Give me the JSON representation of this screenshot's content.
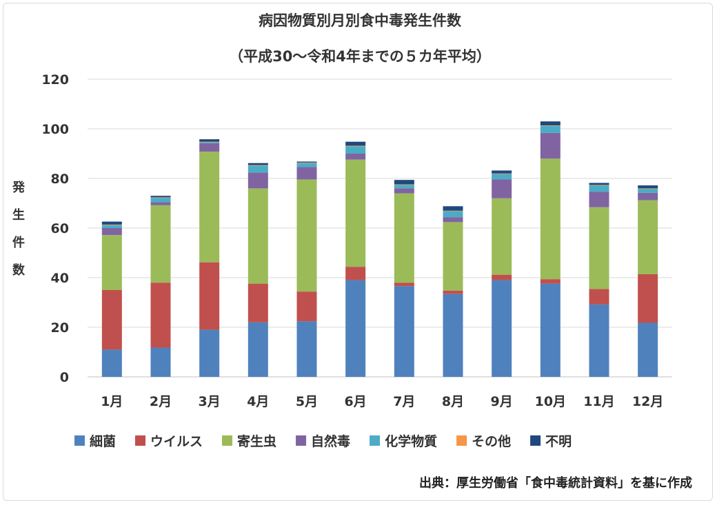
{
  "chart_data": {
    "type": "bar",
    "stacked": true,
    "title": "病因物質別月別食中毒発生件数",
    "subtitle": "（平成30～令和4年までの５カ年平均）",
    "ylabel_chars": [
      "発",
      "生",
      "件",
      "数"
    ],
    "categories": [
      "1月",
      "2月",
      "3月",
      "4月",
      "5月",
      "6月",
      "7月",
      "8月",
      "9月",
      "10月",
      "11月",
      "12月"
    ],
    "ylim": [
      0,
      120
    ],
    "yticks": [
      "0",
      "20",
      "40",
      "60",
      "80",
      "100",
      "120"
    ],
    "grid": true,
    "legend_position": "bottom",
    "series": [
      {
        "name": "細菌",
        "color": "#4F81BD",
        "values": [
          11,
          11.8,
          19,
          22,
          22.4,
          39,
          36.6,
          33.4,
          39,
          37.6,
          29.2,
          21.8
        ]
      },
      {
        "name": "ウイルス",
        "color": "#C0504D",
        "values": [
          24,
          26.2,
          27.2,
          15.6,
          12,
          5.4,
          1.4,
          1.4,
          2.2,
          1.8,
          6.2,
          19.6
        ]
      },
      {
        "name": "寄生虫",
        "color": "#9BBB59",
        "values": [
          22.2,
          31.2,
          44.6,
          38.4,
          45.2,
          43.2,
          36,
          27.6,
          30.8,
          48.6,
          33,
          29.8
        ]
      },
      {
        "name": "自然毒",
        "color": "#8064A2",
        "values": [
          2.8,
          1.2,
          3.4,
          6.4,
          5,
          2.4,
          2,
          2,
          7.6,
          10.4,
          6.2,
          3
        ]
      },
      {
        "name": "化学物質",
        "color": "#4BACC6",
        "values": [
          1.2,
          1.8,
          0.4,
          2.8,
          1.6,
          3,
          1.4,
          2.4,
          2.2,
          2.8,
          2.6,
          1.6
        ]
      },
      {
        "name": "その他",
        "color": "#F79646",
        "values": [
          0.2,
          0.2,
          0.2,
          0.2,
          0.2,
          0.2,
          0.2,
          0.2,
          0.2,
          0.2,
          0.2,
          0.2
        ]
      },
      {
        "name": "不明",
        "color": "#1F497D",
        "values": [
          1.2,
          0.6,
          1,
          0.8,
          0.4,
          1.6,
          1.8,
          1.8,
          1.2,
          1.6,
          0.8,
          1.2
        ]
      }
    ],
    "source_note": "出典：厚生労働省「食中毒統計資料」を基に作成"
  }
}
